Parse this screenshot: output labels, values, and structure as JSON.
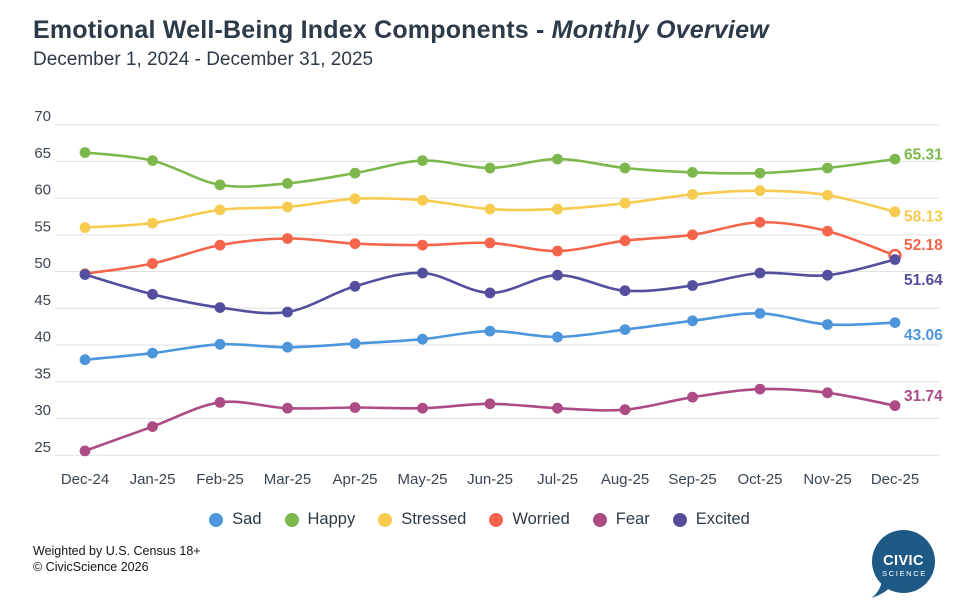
{
  "header": {
    "title_main": "Emotional Well-Being Index Components - ",
    "title_emphasis": "Monthly Overview",
    "subtitle": "December 1, 2024 - December 31, 2025"
  },
  "chart_data": {
    "type": "line",
    "title": "Emotional Well-Being Index Components - Monthly Overview",
    "subtitle": "December 1, 2024 - December 31, 2025",
    "categories": [
      "Dec-24",
      "Jan-25",
      "Feb-25",
      "Mar-25",
      "Apr-25",
      "May-25",
      "Jun-25",
      "Jul-25",
      "Aug-25",
      "Sep-25",
      "Oct-25",
      "Nov-25",
      "Dec-25"
    ],
    "xlabel": "",
    "ylabel": "",
    "ylim": [
      25,
      70
    ],
    "yticks": [
      70,
      65,
      60,
      55,
      50,
      45,
      40,
      35,
      30,
      25
    ],
    "grid": "horizontal-only",
    "legend_position": "bottom",
    "series": [
      {
        "name": "Sad",
        "color": "#4D96DB",
        "values": [
          38.0,
          38.9,
          40.1,
          39.7,
          40.2,
          40.8,
          41.9,
          41.1,
          42.1,
          43.3,
          44.3,
          42.8,
          43.06
        ],
        "end_label": "43.06",
        "end_label_dy": 13
      },
      {
        "name": "Happy",
        "color": "#7CB84E",
        "values": [
          66.2,
          65.1,
          61.8,
          62.0,
          63.4,
          65.1,
          64.1,
          65.3,
          64.1,
          63.5,
          63.4,
          64.1,
          65.31
        ],
        "end_label": "65.31",
        "end_label_dy": -4
      },
      {
        "name": "Stressed",
        "color": "#F7CB4F",
        "values": [
          56.0,
          56.6,
          58.4,
          58.8,
          59.9,
          59.7,
          58.5,
          58.5,
          59.3,
          60.5,
          61.0,
          60.4,
          58.13
        ],
        "end_label": "58.13",
        "end_label_dy": 5
      },
      {
        "name": "Worried",
        "color": "#F4654B",
        "values": [
          49.7,
          51.1,
          53.6,
          54.5,
          53.8,
          53.6,
          53.9,
          52.8,
          54.2,
          55.0,
          56.7,
          55.5,
          52.18
        ],
        "end_label": "52.18",
        "end_label_dy": -10,
        "last_point_hollow": true
      },
      {
        "name": "Fear",
        "color": "#AC4B84",
        "values": [
          25.6,
          28.9,
          32.2,
          31.4,
          31.5,
          31.4,
          32.0,
          31.4,
          31.2,
          32.9,
          34.0,
          33.5,
          31.74
        ],
        "end_label": "31.74",
        "end_label_dy": -9
      },
      {
        "name": "Excited",
        "color": "#534E9D",
        "values": [
          49.6,
          46.9,
          45.1,
          44.5,
          48.0,
          49.8,
          47.1,
          49.5,
          47.4,
          48.1,
          49.8,
          49.5,
          51.64
        ],
        "end_label": "51.64",
        "end_label_dy": 21
      }
    ]
  },
  "footer": {
    "line1": "Weighted by U.S. Census 18+",
    "line2": "© CivicScience 2026"
  },
  "logo": {
    "line1": "CIVIC",
    "line2": "SCIENCE",
    "bubble_color": "#1F5A87"
  }
}
